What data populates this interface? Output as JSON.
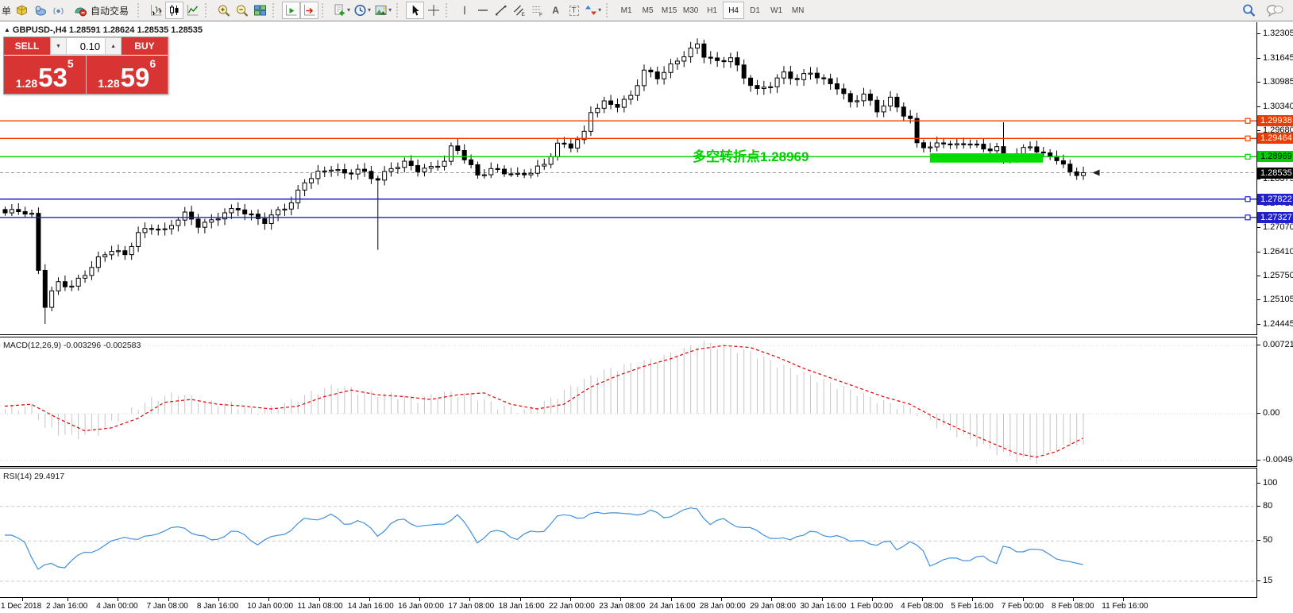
{
  "toolbar": {
    "new_order_partial": "单",
    "autotrading_label": "自动交易",
    "timeframes": [
      "M1",
      "M5",
      "M15",
      "M30",
      "H1",
      "H4",
      "D1",
      "W1",
      "MN"
    ],
    "active_timeframe": "H4",
    "glyphs": {
      "text": "A",
      "text_label": "T",
      "channel": "E",
      "fibo": "F"
    }
  },
  "chart_header": {
    "marker": "▲",
    "symbol_line": "GBPUSD-,H4  1.28591 1.28624 1.28535 1.28535"
  },
  "one_click": {
    "sell_label": "SELL",
    "buy_label": "BUY",
    "volume": "0.10",
    "step_down": "▼",
    "step_up": "▲",
    "sell_small": "1.28",
    "sell_big": "53",
    "sell_sup": "5",
    "buy_small": "1.28",
    "buy_big": "59",
    "buy_sup": "6"
  },
  "annotation": {
    "text": "多空转折点1.28969"
  },
  "indicators": {
    "macd_label": "MACD(12,26,9) -0.003296 -0.002583",
    "rsi_label": "RSI(14) 29.4917"
  },
  "bid": {
    "price": 1.28535,
    "label": "1.28535"
  },
  "lines": [
    {
      "price": 1.29938,
      "label": "1.29938",
      "color": "#ee3c00",
      "text": "#ffffff"
    },
    {
      "price": 1.29464,
      "label": "1.29464",
      "color": "#ee3c00",
      "text": "#ffffff"
    },
    {
      "price": 1.28969,
      "label": "1.28969",
      "color": "#00cf00",
      "text": "#000000"
    },
    {
      "price": 1.27822,
      "label": "1.27822",
      "color": "#2121cc",
      "text": "#ffffff"
    },
    {
      "price": 1.27327,
      "label": "1.27327",
      "color": "#2121cc",
      "text": "#ffffff"
    }
  ],
  "axes": {
    "price_ticks": [
      "1.32305",
      "1.31645",
      "1.30985",
      "1.30340",
      "1.29680",
      "1.28375",
      "1.27715",
      "1.27070",
      "1.26410",
      "1.25750",
      "1.25105",
      "1.24445"
    ],
    "macd_ticks": [
      "0.007216",
      "0.00",
      "-0.004943"
    ],
    "rsi_ticks": [
      "100",
      "80",
      "50",
      "15"
    ],
    "rsi_levels": [
      80,
      50,
      15
    ]
  },
  "colors": {
    "bull": "#ffffff",
    "bear": "#000000",
    "wick": "#000000",
    "bid_line": "#9a9a9a",
    "bid_chip_bg": "#000000",
    "bid_chip_text": "#ffffff",
    "macd_hist": "#c4c4c4",
    "macd_signal": "#e60000",
    "macd_grid": "#d8d8d8",
    "rsi_line": "#3f8fde",
    "rsi_grid": "#c9c9c9",
    "highlight_green": "#00dd00",
    "annotation_green": "#00d000"
  },
  "chart_data": {
    "type": "candlestick",
    "symbol": "GBPUSD-",
    "timeframe": "H4",
    "candle_count": 163,
    "price_at_last": 1.28535,
    "close_waypoints": [
      [
        0,
        1.2745
      ],
      [
        2,
        1.2752
      ],
      [
        4,
        1.2738
      ],
      [
        5,
        1.259
      ],
      [
        6,
        1.2495
      ],
      [
        7,
        1.253
      ],
      [
        8,
        1.2556
      ],
      [
        10,
        1.2546
      ],
      [
        12,
        1.258
      ],
      [
        14,
        1.262
      ],
      [
        16,
        1.2646
      ],
      [
        18,
        1.263
      ],
      [
        20,
        1.269
      ],
      [
        22,
        1.2706
      ],
      [
        24,
        1.2696
      ],
      [
        26,
        1.273
      ],
      [
        27,
        1.2742
      ],
      [
        29,
        1.2712
      ],
      [
        31,
        1.2722
      ],
      [
        33,
        1.2746
      ],
      [
        35,
        1.2756
      ],
      [
        37,
        1.2736
      ],
      [
        39,
        1.2722
      ],
      [
        41,
        1.275
      ],
      [
        43,
        1.2772
      ],
      [
        45,
        1.283
      ],
      [
        47,
        1.2852
      ],
      [
        49,
        1.2866
      ],
      [
        51,
        1.285
      ],
      [
        53,
        1.2862
      ],
      [
        55,
        1.2842
      ],
      [
        56,
        1.2836
      ],
      [
        58,
        1.2866
      ],
      [
        60,
        1.288
      ],
      [
        62,
        1.2862
      ],
      [
        64,
        1.2866
      ],
      [
        66,
        1.2886
      ],
      [
        67,
        1.292
      ],
      [
        68,
        1.2916
      ],
      [
        70,
        1.287
      ],
      [
        71,
        1.2846
      ],
      [
        73,
        1.2862
      ],
      [
        75,
        1.2856
      ],
      [
        77,
        1.2846
      ],
      [
        79,
        1.2856
      ],
      [
        81,
        1.2876
      ],
      [
        83,
        1.293
      ],
      [
        85,
        1.2926
      ],
      [
        87,
        1.296
      ],
      [
        88,
        1.302
      ],
      [
        90,
        1.3042
      ],
      [
        92,
        1.3036
      ],
      [
        94,
        1.306
      ],
      [
        96,
        1.313
      ],
      [
        98,
        1.3112
      ],
      [
        100,
        1.3142
      ],
      [
        102,
        1.3172
      ],
      [
        104,
        1.32
      ],
      [
        105,
        1.3172
      ],
      [
        107,
        1.3152
      ],
      [
        109,
        1.3166
      ],
      [
        111,
        1.3112
      ],
      [
        113,
        1.3076
      ],
      [
        115,
        1.3092
      ],
      [
        117,
        1.3122
      ],
      [
        119,
        1.3106
      ],
      [
        121,
        1.3126
      ],
      [
        123,
        1.3102
      ],
      [
        125,
        1.3086
      ],
      [
        127,
        1.3042
      ],
      [
        129,
        1.3066
      ],
      [
        131,
        1.3022
      ],
      [
        133,
        1.3052
      ],
      [
        135,
        1.3012
      ],
      [
        136,
        1.2996
      ],
      [
        137,
        1.2932
      ],
      [
        139,
        1.2922
      ],
      [
        141,
        1.2936
      ],
      [
        143,
        1.2926
      ],
      [
        145,
        1.2936
      ],
      [
        147,
        1.2916
      ],
      [
        149,
        1.2922
      ],
      [
        150,
        1.2882
      ],
      [
        152,
        1.2906
      ],
      [
        154,
        1.2926
      ],
      [
        156,
        1.2902
      ],
      [
        158,
        1.2892
      ],
      [
        160,
        1.2856
      ],
      [
        161,
        1.2846
      ],
      [
        162,
        1.28535
      ]
    ],
    "special_wicks": [
      {
        "index": 6,
        "low": 1.24445
      },
      {
        "index": 56,
        "low": 1.2645
      },
      {
        "index": 68,
        "high": 1.2946
      },
      {
        "index": 104,
        "high": 1.3217
      },
      {
        "index": 150,
        "high": 1.299
      }
    ],
    "highlight_rect": {
      "i1": 139,
      "i2": 156,
      "price_top": 1.2906,
      "price_bottom": 1.2881
    },
    "macd_signal_waypoints": [
      [
        0,
        0.0008
      ],
      [
        4,
        0.001
      ],
      [
        8,
        -0.0005
      ],
      [
        12,
        -0.0018
      ],
      [
        16,
        -0.0015
      ],
      [
        20,
        -0.0005
      ],
      [
        24,
        0.0012
      ],
      [
        28,
        0.0015
      ],
      [
        32,
        0.001
      ],
      [
        36,
        0.0008
      ],
      [
        40,
        0.0005
      ],
      [
        44,
        0.0008
      ],
      [
        48,
        0.0018
      ],
      [
        52,
        0.0025
      ],
      [
        56,
        0.002
      ],
      [
        60,
        0.0018
      ],
      [
        64,
        0.0015
      ],
      [
        68,
        0.002
      ],
      [
        72,
        0.0022
      ],
      [
        76,
        0.001
      ],
      [
        80,
        0.0005
      ],
      [
        84,
        0.001
      ],
      [
        88,
        0.0028
      ],
      [
        92,
        0.004
      ],
      [
        96,
        0.005
      ],
      [
        100,
        0.0058
      ],
      [
        104,
        0.0068
      ],
      [
        108,
        0.0072
      ],
      [
        112,
        0.007
      ],
      [
        116,
        0.006
      ],
      [
        120,
        0.0048
      ],
      [
        124,
        0.0038
      ],
      [
        128,
        0.0028
      ],
      [
        132,
        0.0018
      ],
      [
        136,
        0.001
      ],
      [
        140,
        -0.0005
      ],
      [
        144,
        -0.0018
      ],
      [
        148,
        -0.003
      ],
      [
        152,
        -0.0042
      ],
      [
        155,
        -0.0046
      ],
      [
        158,
        -0.004
      ],
      [
        162,
        -0.002583
      ]
    ],
    "macd_hist_waypoints": [
      [
        0,
        0.0005
      ],
      [
        4,
        0.0008
      ],
      [
        6,
        -0.0015
      ],
      [
        10,
        -0.0025
      ],
      [
        14,
        -0.002
      ],
      [
        18,
        0.0
      ],
      [
        22,
        0.0015
      ],
      [
        26,
        0.0022
      ],
      [
        30,
        0.0012
      ],
      [
        34,
        0.001
      ],
      [
        38,
        0.0002
      ],
      [
        42,
        0.001
      ],
      [
        46,
        0.0022
      ],
      [
        50,
        0.003
      ],
      [
        54,
        0.0022
      ],
      [
        58,
        0.002
      ],
      [
        62,
        0.0015
      ],
      [
        66,
        0.0022
      ],
      [
        70,
        0.002
      ],
      [
        74,
        0.0008
      ],
      [
        78,
        0.0003
      ],
      [
        82,
        0.0015
      ],
      [
        86,
        0.0032
      ],
      [
        90,
        0.0045
      ],
      [
        94,
        0.0052
      ],
      [
        98,
        0.0058
      ],
      [
        102,
        0.0068
      ],
      [
        105,
        0.0075
      ],
      [
        108,
        0.007
      ],
      [
        112,
        0.0065
      ],
      [
        116,
        0.0052
      ],
      [
        120,
        0.0042
      ],
      [
        124,
        0.0032
      ],
      [
        128,
        0.0022
      ],
      [
        132,
        0.0012
      ],
      [
        136,
        0.0005
      ],
      [
        140,
        -0.0012
      ],
      [
        144,
        -0.0025
      ],
      [
        148,
        -0.0038
      ],
      [
        152,
        -0.0048
      ],
      [
        155,
        -0.005
      ],
      [
        158,
        -0.0036
      ],
      [
        162,
        -0.003296
      ]
    ],
    "rsi_waypoints": [
      [
        0,
        55
      ],
      [
        3,
        50
      ],
      [
        5,
        25
      ],
      [
        7,
        30
      ],
      [
        9,
        28
      ],
      [
        12,
        40
      ],
      [
        15,
        45
      ],
      [
        18,
        55
      ],
      [
        20,
        50
      ],
      [
        23,
        58
      ],
      [
        25,
        60
      ],
      [
        27,
        62
      ],
      [
        29,
        55
      ],
      [
        31,
        50
      ],
      [
        34,
        58
      ],
      [
        36,
        55
      ],
      [
        38,
        48
      ],
      [
        40,
        52
      ],
      [
        43,
        60
      ],
      [
        45,
        68
      ],
      [
        47,
        70
      ],
      [
        49,
        72
      ],
      [
        51,
        65
      ],
      [
        53,
        68
      ],
      [
        55,
        60
      ],
      [
        56,
        55
      ],
      [
        58,
        65
      ],
      [
        60,
        68
      ],
      [
        62,
        64
      ],
      [
        64,
        62
      ],
      [
        66,
        66
      ],
      [
        68,
        72
      ],
      [
        70,
        58
      ],
      [
        71,
        50
      ],
      [
        73,
        57
      ],
      [
        75,
        58
      ],
      [
        77,
        52
      ],
      [
        79,
        57
      ],
      [
        81,
        60
      ],
      [
        83,
        70
      ],
      [
        85,
        73
      ],
      [
        87,
        70
      ],
      [
        89,
        74
      ],
      [
        91,
        76
      ],
      [
        93,
        72
      ],
      [
        95,
        74
      ],
      [
        97,
        76
      ],
      [
        99,
        70
      ],
      [
        101,
        75
      ],
      [
        103,
        77
      ],
      [
        104,
        78
      ],
      [
        106,
        65
      ],
      [
        108,
        68
      ],
      [
        110,
        64
      ],
      [
        112,
        60
      ],
      [
        114,
        56
      ],
      [
        116,
        52
      ],
      [
        118,
        50
      ],
      [
        119,
        55
      ],
      [
        121,
        58
      ],
      [
        123,
        54
      ],
      [
        125,
        56
      ],
      [
        127,
        48
      ],
      [
        129,
        52
      ],
      [
        131,
        45
      ],
      [
        133,
        50
      ],
      [
        134,
        44
      ],
      [
        136,
        48
      ],
      [
        138,
        42
      ],
      [
        139,
        30
      ],
      [
        141,
        32
      ],
      [
        143,
        36
      ],
      [
        145,
        33
      ],
      [
        147,
        36
      ],
      [
        149,
        32
      ],
      [
        150,
        45
      ],
      [
        152,
        40
      ],
      [
        154,
        44
      ],
      [
        156,
        40
      ],
      [
        158,
        36
      ],
      [
        160,
        32
      ],
      [
        162,
        29.4917
      ]
    ],
    "x_axis_labels": [
      "1 Dec 2018",
      "2 Jan 16:00",
      "4 Jan 00:00",
      "7 Jan 08:00",
      "8 Jan 16:00",
      "10 Jan 00:00",
      "11 Jan 08:00",
      "14 Jan 16:00",
      "16 Jan 00:00",
      "17 Jan 08:00",
      "18 Jan 16:00",
      "22 Jan 00:00",
      "23 Jan 08:00",
      "24 Jan 16:00",
      "28 Jan 00:00",
      "29 Jan 08:00",
      "30 Jan 16:00",
      "1 Feb 00:00",
      "4 Feb 08:00",
      "5 Feb 16:00",
      "7 Feb 00:00",
      "8 Feb 08:00",
      "11 Feb 16:00"
    ]
  }
}
